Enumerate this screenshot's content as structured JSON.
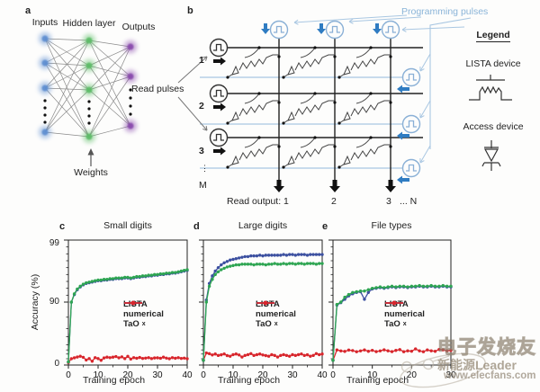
{
  "panel_a": {
    "letter": "a",
    "labels": {
      "inputs": "Inputs",
      "hidden": "Hidden layer",
      "outputs": "Outputs",
      "weights": "Weights"
    },
    "node_colors": {
      "input": "#5e8fd1",
      "hidden": "#5dbd68",
      "output": "#8a4bad"
    }
  },
  "panel_b": {
    "letter": "b",
    "programming_pulses": "Programming pulses",
    "read_pulses": "Read pulses",
    "row_labels": [
      "1",
      "2",
      "3"
    ],
    "row_ellipsis": "⋮",
    "row_last": "M",
    "read_output": {
      "prefix": "Read output: 1",
      "col2": "2",
      "col3": "3",
      "colN": "... N"
    },
    "colors": {
      "wire": "#222222",
      "program_line": "#a9c7e2",
      "pulse_arrow": "#2f7cc2",
      "label_blue": "#8ab4d8"
    }
  },
  "legend_box": {
    "title": "Legend",
    "item1": "LISTA device",
    "item2": "Access device"
  },
  "chart_common": {
    "ylabel": "Accuracy (%)",
    "xlabel": "Training epoch",
    "yticks": [
      "99",
      "90",
      "0"
    ],
    "y_scale": "nonlinear probability-style axis with labeled ticks 0, 90, 99",
    "legend": [
      {
        "text": "LISTA",
        "sub": ""
      },
      {
        "text": "numerical",
        "sub": ""
      },
      {
        "text": "TaO",
        "sub": "x"
      }
    ],
    "colors": [
      "#2ea552",
      "#3c50a0",
      "#d8262c"
    ]
  },
  "chart_data": [
    {
      "panel_letter": "c",
      "type": "line",
      "title": "Small digits",
      "xlabel": "Training epoch",
      "ylabel": "Accuracy (%)",
      "x_range": [
        0,
        40
      ],
      "x_step": 1,
      "xticks": [
        0,
        10,
        20,
        30,
        40
      ],
      "yticks": [
        0,
        90,
        99
      ],
      "legend_position": "center-right",
      "grid": false,
      "series": [
        {
          "name": "LISTA",
          "values": [
            1.0,
            90.0,
            91.2,
            91.9,
            92.3,
            92.6,
            92.8,
            92.9,
            93.0,
            93.1,
            93.2,
            93.2,
            93.3,
            93.3,
            93.4,
            93.4,
            93.5,
            93.5,
            93.5,
            93.6,
            93.6,
            93.5,
            93.6,
            93.7,
            93.7,
            93.8,
            93.8,
            93.9,
            93.9,
            94.0,
            94.0,
            94.1,
            94.1,
            94.2,
            94.2,
            94.3,
            94.3,
            94.4,
            94.5,
            94.6,
            94.7
          ]
        },
        {
          "name": "numerical",
          "values": [
            1.0,
            89.9,
            91.1,
            91.8,
            92.2,
            92.5,
            92.7,
            92.8,
            92.9,
            93.0,
            93.1,
            93.1,
            93.2,
            93.2,
            93.3,
            93.3,
            93.4,
            93.4,
            93.4,
            93.5,
            93.5,
            93.4,
            93.5,
            93.6,
            93.6,
            93.7,
            93.7,
            93.8,
            93.8,
            93.9,
            93.9,
            94.0,
            94.0,
            94.1,
            94.1,
            94.2,
            94.2,
            94.3,
            94.4,
            94.5,
            94.6
          ]
        },
        {
          "name": "TaOx",
          "values": [
            0.8,
            2.0,
            2.6,
            3.1,
            3.6,
            2.9,
            1.6,
            2.1,
            1.2,
            2.7,
            2.1,
            1.5,
            2.5,
            3.0,
            2.7,
            3.0,
            3.4,
            2.6,
            3.2,
            2.1,
            3.5,
            1.9,
            2.7,
            2.3,
            2.8,
            2.2,
            2.4,
            2.7,
            2.1,
            2.5,
            2.6,
            2.3,
            3.0,
            2.4,
            2.0,
            2.7,
            2.3,
            2.7,
            2.2,
            2.4,
            2.0
          ]
        }
      ]
    },
    {
      "panel_letter": "d",
      "type": "line",
      "title": "Large digits",
      "xlabel": "Training epoch",
      "ylabel": "Accuracy (%)",
      "x_range": [
        0,
        40
      ],
      "x_step": 1,
      "xticks": [
        0,
        10,
        20,
        30,
        40
      ],
      "yticks": [
        0,
        90,
        99
      ],
      "legend_position": "center-right",
      "grid": false,
      "series": [
        {
          "name": "LISTA",
          "values": [
            1.5,
            90.0,
            92.3,
            93.3,
            94.0,
            94.4,
            94.7,
            94.9,
            95.1,
            95.2,
            95.3,
            95.4,
            95.4,
            95.5,
            95.5,
            95.5,
            95.5,
            95.4,
            95.5,
            95.5,
            95.5,
            95.4,
            95.5,
            95.5,
            95.6,
            95.5,
            95.5,
            95.6,
            95.5,
            95.6,
            95.6,
            95.5,
            95.6,
            95.6,
            95.5,
            95.6,
            95.6,
            95.6,
            95.5,
            95.6,
            95.6
          ]
        },
        {
          "name": "numerical",
          "values": [
            1.5,
            90.3,
            92.7,
            93.8,
            94.5,
            95.0,
            95.4,
            95.7,
            95.9,
            96.1,
            96.2,
            96.3,
            96.4,
            96.5,
            96.6,
            96.6,
            96.7,
            96.7,
            96.7,
            96.8,
            96.7,
            96.8,
            96.8,
            96.8,
            96.8,
            96.8,
            96.8,
            96.9,
            96.8,
            96.9,
            96.9,
            96.8,
            96.9,
            96.9,
            96.9,
            96.8,
            96.9,
            96.9,
            96.9,
            96.9,
            96.9
          ]
        },
        {
          "name": "TaOx",
          "values": [
            1.5,
            6.3,
            5.4,
            4.4,
            5.0,
            4.1,
            4.5,
            5.1,
            4.0,
            3.6,
            4.6,
            5.0,
            4.4,
            3.1,
            4.1,
            4.6,
            5.5,
            4.1,
            4.6,
            5.0,
            4.4,
            4.0,
            3.6,
            4.6,
            4.1,
            3.1,
            4.1,
            4.6,
            4.1,
            3.6,
            4.6,
            4.1,
            4.6,
            5.1,
            4.1,
            4.5,
            3.6,
            4.1,
            5.5,
            4.6,
            5.0
          ]
        }
      ]
    },
    {
      "panel_letter": "e",
      "type": "line",
      "title": "File types",
      "xlabel": "Training epoch",
      "ylabel": "Accuracy (%)",
      "x_range": [
        0,
        30
      ],
      "x_step": 1,
      "xticks": [
        0,
        10,
        20,
        30
      ],
      "yticks": [
        0,
        90,
        99
      ],
      "legend_position": "center-right",
      "grid": false,
      "series": [
        {
          "name": "LISTA",
          "values": [
            1.5,
            88.5,
            90.0,
            90.7,
            91.1,
            91.4,
            91.5,
            91.6,
            91.6,
            91.8,
            92.0,
            92.1,
            92.2,
            92.1,
            92.2,
            92.3,
            92.2,
            92.3,
            92.3,
            92.2,
            92.3,
            92.3,
            92.4,
            92.3,
            92.3,
            92.4,
            92.3,
            92.3,
            92.4,
            92.3,
            92.3
          ]
        },
        {
          "name": "numerical",
          "values": [
            1.5,
            88.0,
            89.6,
            90.4,
            90.9,
            91.2,
            91.4,
            91.5,
            90.4,
            91.4,
            91.9,
            92.0,
            92.1,
            92.0,
            92.1,
            92.2,
            92.1,
            92.2,
            92.2,
            92.1,
            92.2,
            92.2,
            92.3,
            92.2,
            92.2,
            92.3,
            92.2,
            92.2,
            92.3,
            92.2,
            92.2
          ]
        },
        {
          "name": "TaOx",
          "values": [
            1.5,
            10.0,
            8.8,
            8.2,
            9.8,
            9.2,
            7.8,
            8.8,
            10.0,
            8.3,
            9.5,
            7.9,
            8.8,
            10.2,
            8.9,
            7.9,
            9.4,
            10.6,
            7.8,
            8.9,
            8.4,
            12.0,
            8.9,
            7.8,
            10.0,
            8.9,
            8.3,
            11.0,
            10.2,
            8.9,
            9.4
          ]
        }
      ]
    }
  ],
  "watermark": {
    "line1": "电子发烧友",
    "line2": "新能源Leader",
    "line3": "www.elecfans.com"
  }
}
